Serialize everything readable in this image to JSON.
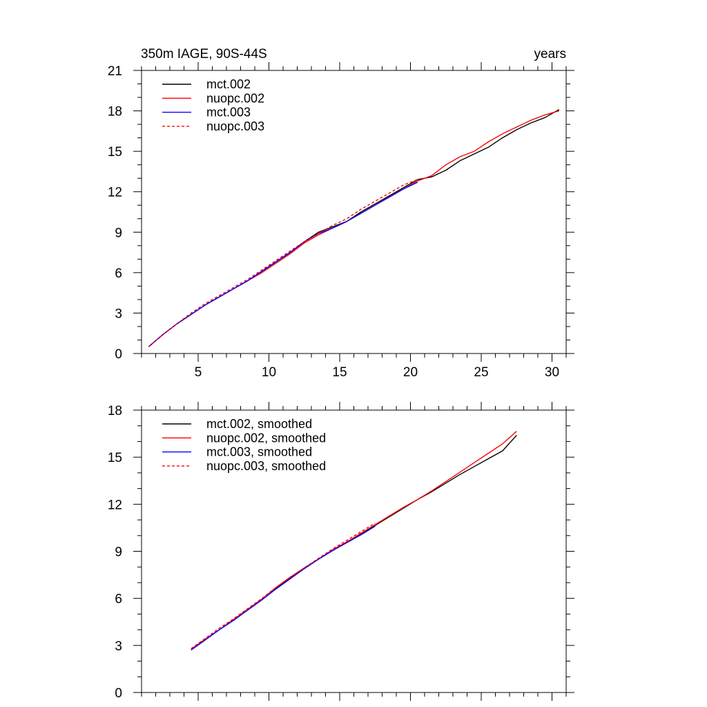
{
  "chart_data": [
    {
      "type": "line",
      "title_left": "350m IAGE, 90S-44S",
      "title_right": "years",
      "xlabel": "",
      "ylabel": "",
      "xlim": [
        1,
        31
      ],
      "ylim": [
        0,
        21
      ],
      "xticks": [
        5,
        10,
        15,
        20,
        25,
        30
      ],
      "xtick_labels": [
        "5",
        "10",
        "15",
        "20",
        "25",
        "30"
      ],
      "yticks": [
        0,
        3,
        6,
        9,
        12,
        15,
        18,
        21
      ],
      "ytick_labels": [
        "0",
        "3",
        "6",
        "9",
        "12",
        "15",
        "18",
        "21"
      ],
      "legend_position": "top-left",
      "grid": false,
      "series": [
        {
          "name": "mct.002",
          "color": "#000000",
          "dash": "solid",
          "x": [
            1.5,
            2.5,
            3.5,
            4.5,
            5.5,
            6.5,
            7.5,
            8.5,
            9.5,
            10.5,
            11.5,
            12.5,
            13.5,
            14.5,
            15.5,
            16.5,
            17.5,
            18.5,
            19.5,
            20.5,
            21.5,
            22.5,
            23.5,
            24.5,
            25.5,
            26.5,
            27.5,
            28.5,
            29.5,
            30.5
          ],
          "y": [
            0.5,
            1.4,
            2.2,
            2.9,
            3.6,
            4.2,
            4.8,
            5.4,
            6.1,
            6.8,
            7.5,
            8.3,
            9.0,
            9.4,
            9.8,
            10.5,
            11.1,
            11.7,
            12.3,
            12.9,
            13.1,
            13.6,
            14.3,
            14.8,
            15.3,
            16.0,
            16.6,
            17.1,
            17.5,
            18.1
          ]
        },
        {
          "name": "nuopc.002",
          "color": "#ff0000",
          "dash": "solid",
          "x": [
            1.5,
            2.5,
            3.5,
            4.5,
            5.5,
            6.5,
            7.5,
            8.5,
            9.5,
            10.5,
            11.5,
            12.5,
            13.5,
            14.5,
            15.5,
            16.5,
            17.5,
            18.5,
            19.5,
            20.5,
            21.5,
            22.5,
            23.5,
            24.5,
            25.5,
            26.5,
            27.5,
            28.5,
            29.5,
            30.5
          ],
          "y": [
            0.5,
            1.4,
            2.2,
            2.9,
            3.6,
            4.2,
            4.8,
            5.4,
            6.0,
            6.7,
            7.4,
            8.2,
            8.8,
            9.3,
            9.8,
            10.4,
            11.0,
            11.6,
            12.2,
            12.8,
            13.2,
            14.0,
            14.6,
            15.0,
            15.7,
            16.3,
            16.8,
            17.3,
            17.7,
            18.0
          ]
        },
        {
          "name": "mct.003",
          "color": "#0000ff",
          "dash": "solid",
          "x": [
            1.5,
            2.5,
            3.5,
            4.5,
            5.5,
            6.5,
            7.5,
            8.5,
            9.5,
            10.5,
            11.5,
            12.5,
            13.5,
            14.5,
            15.5,
            16.5,
            17.5,
            18.5,
            19.5,
            20.5
          ],
          "y": [
            0.5,
            1.4,
            2.2,
            2.9,
            3.6,
            4.2,
            4.8,
            5.4,
            6.1,
            6.8,
            7.5,
            8.3,
            8.9,
            9.3,
            9.8,
            10.4,
            11.0,
            11.6,
            12.2,
            12.7
          ]
        },
        {
          "name": "nuopc.003",
          "color": "#ff0000",
          "dash": "dashed",
          "x": [
            1.5,
            2.5,
            3.5,
            4.5,
            5.5,
            6.5,
            7.5,
            8.5,
            9.5,
            10.5,
            11.5,
            12.5,
            13.5,
            14.5,
            15.5,
            16.5,
            17.5,
            18.5,
            19.5,
            20.5
          ],
          "y": [
            0.5,
            1.4,
            2.2,
            3.0,
            3.7,
            4.3,
            4.9,
            5.5,
            6.2,
            6.9,
            7.6,
            8.3,
            8.9,
            9.5,
            10.0,
            10.7,
            11.3,
            11.9,
            12.5,
            12.9
          ]
        }
      ]
    },
    {
      "type": "line",
      "title_left": "",
      "title_right": "",
      "xlabel": "",
      "ylabel": "",
      "xlim": [
        1,
        31
      ],
      "ylim": [
        0,
        18
      ],
      "xticks": [
        5,
        10,
        15,
        20,
        25,
        30
      ],
      "xtick_labels": [],
      "yticks": [
        0,
        3,
        6,
        9,
        12,
        15,
        18
      ],
      "ytick_labels": [
        "0",
        "3",
        "6",
        "9",
        "12",
        "15",
        "18"
      ],
      "legend_position": "top-left",
      "grid": false,
      "series": [
        {
          "name": "mct.002, smoothed",
          "color": "#000000",
          "dash": "solid",
          "x": [
            4.5,
            5.5,
            6.5,
            7.5,
            8.5,
            9.5,
            10.5,
            11.5,
            12.5,
            13.5,
            14.5,
            15.5,
            16.5,
            17.5,
            18.5,
            19.5,
            20.5,
            21.5,
            22.5,
            23.5,
            24.5,
            25.5,
            26.5,
            27.5
          ],
          "y": [
            2.75,
            3.4,
            4.0,
            4.65,
            5.3,
            5.95,
            6.65,
            7.3,
            7.9,
            8.5,
            9.05,
            9.6,
            10.1,
            10.65,
            11.2,
            11.75,
            12.3,
            12.8,
            13.35,
            13.9,
            14.4,
            14.9,
            15.4,
            16.4
          ]
        },
        {
          "name": "nuopc.002, smoothed",
          "color": "#ff0000",
          "dash": "solid",
          "x": [
            4.5,
            5.5,
            6.5,
            7.5,
            8.5,
            9.5,
            10.5,
            11.5,
            12.5,
            13.5,
            14.5,
            15.5,
            16.5,
            17.5,
            18.5,
            19.5,
            20.5,
            21.5,
            22.5,
            23.5,
            24.5,
            25.5,
            26.5,
            27.5
          ],
          "y": [
            2.75,
            3.4,
            4.0,
            4.65,
            5.3,
            5.95,
            6.7,
            7.35,
            7.95,
            8.5,
            9.1,
            9.6,
            10.15,
            10.7,
            11.25,
            11.8,
            12.3,
            12.85,
            13.45,
            14.05,
            14.65,
            15.25,
            15.85,
            16.65
          ]
        },
        {
          "name": "mct.003, smoothed",
          "color": "#0000ff",
          "dash": "solid",
          "x": [
            4.5,
            5.5,
            6.5,
            7.5,
            8.5,
            9.5,
            10.5,
            11.5,
            12.5,
            13.5,
            14.5,
            15.5,
            16.5,
            17.5
          ],
          "y": [
            2.7,
            3.35,
            4.0,
            4.6,
            5.25,
            5.9,
            6.6,
            7.25,
            7.9,
            8.5,
            9.05,
            9.55,
            10.05,
            10.6
          ]
        },
        {
          "name": "nuopc.003, smoothed",
          "color": "#ff0000",
          "dash": "dashed",
          "x": [
            4.5,
            5.5,
            6.5,
            7.5,
            8.5,
            9.5,
            10.5,
            11.5,
            12.5,
            13.5,
            14.5,
            15.5,
            16.5,
            17.5
          ],
          "y": [
            2.8,
            3.45,
            4.1,
            4.7,
            5.35,
            6.0,
            6.7,
            7.35,
            7.95,
            8.55,
            9.15,
            9.7,
            10.25,
            10.8
          ]
        }
      ]
    }
  ]
}
